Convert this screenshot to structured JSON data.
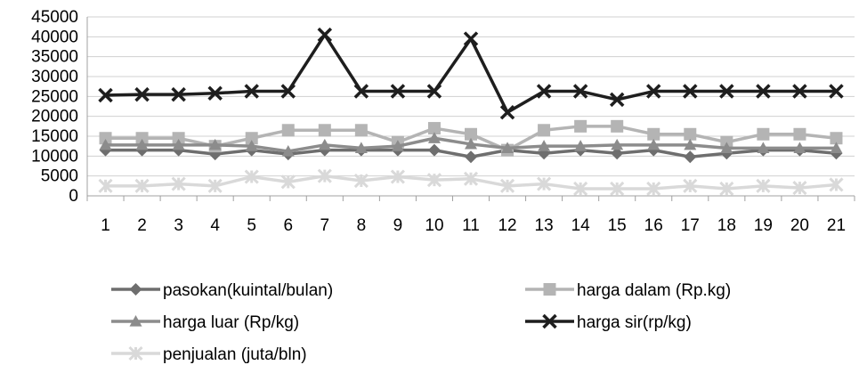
{
  "chart_data": {
    "type": "line",
    "categories": [
      "1",
      "2",
      "3",
      "4",
      "5",
      "6",
      "7",
      "8",
      "9",
      "10",
      "11",
      "12",
      "13",
      "14",
      "15",
      "16",
      "17",
      "18",
      "19",
      "20",
      "21"
    ],
    "ylim": [
      0,
      45000
    ],
    "yticks": [
      0,
      5000,
      10000,
      15000,
      20000,
      25000,
      30000,
      35000,
      40000,
      45000
    ],
    "grid": true,
    "legend_position": "bottom",
    "series": [
      {
        "name": "pasokan(kuintal/bulan)",
        "color": "#6e6e6e",
        "marker": "diamond",
        "values": [
          11500,
          11500,
          11500,
          10500,
          11500,
          10500,
          11500,
          11500,
          11500,
          11500,
          9800,
          11500,
          10700,
          11500,
          10700,
          11500,
          9800,
          10700,
          11500,
          11500,
          10700
        ]
      },
      {
        "name": "harga dalam (Rp.kg)",
        "color": "#b4b4b4",
        "marker": "square",
        "values": [
          14500,
          14500,
          14500,
          12500,
          14500,
          16500,
          16500,
          16500,
          13500,
          17000,
          15500,
          11500,
          16500,
          17500,
          17500,
          15500,
          15500,
          13500,
          15500,
          15500,
          14500
        ]
      },
      {
        "name": "harga luar (Rp/kg)",
        "color": "#8c8c8c",
        "marker": "triangle",
        "values": [
          12800,
          12800,
          12800,
          12800,
          12500,
          11200,
          12800,
          12000,
          12500,
          14500,
          13000,
          12000,
          12500,
          12500,
          12800,
          12800,
          12800,
          12000,
          12000,
          12000,
          12000
        ]
      },
      {
        "name": "harga sir(rp/kg)",
        "color": "#1e1e1e",
        "marker": "x",
        "values": [
          25300,
          25500,
          25500,
          25800,
          26300,
          26300,
          40500,
          26300,
          26300,
          26300,
          39500,
          21000,
          26300,
          26300,
          24200,
          26300,
          26300,
          26300,
          26300,
          26300,
          26300
        ]
      },
      {
        "name": "penjualan (juta/bln)",
        "color": "#d9d9d9",
        "marker": "star",
        "values": [
          2500,
          2500,
          3000,
          2500,
          4800,
          3500,
          5000,
          3800,
          4800,
          4000,
          4300,
          2500,
          3000,
          1800,
          1800,
          1800,
          2500,
          1800,
          2500,
          2000,
          2800
        ]
      }
    ]
  }
}
